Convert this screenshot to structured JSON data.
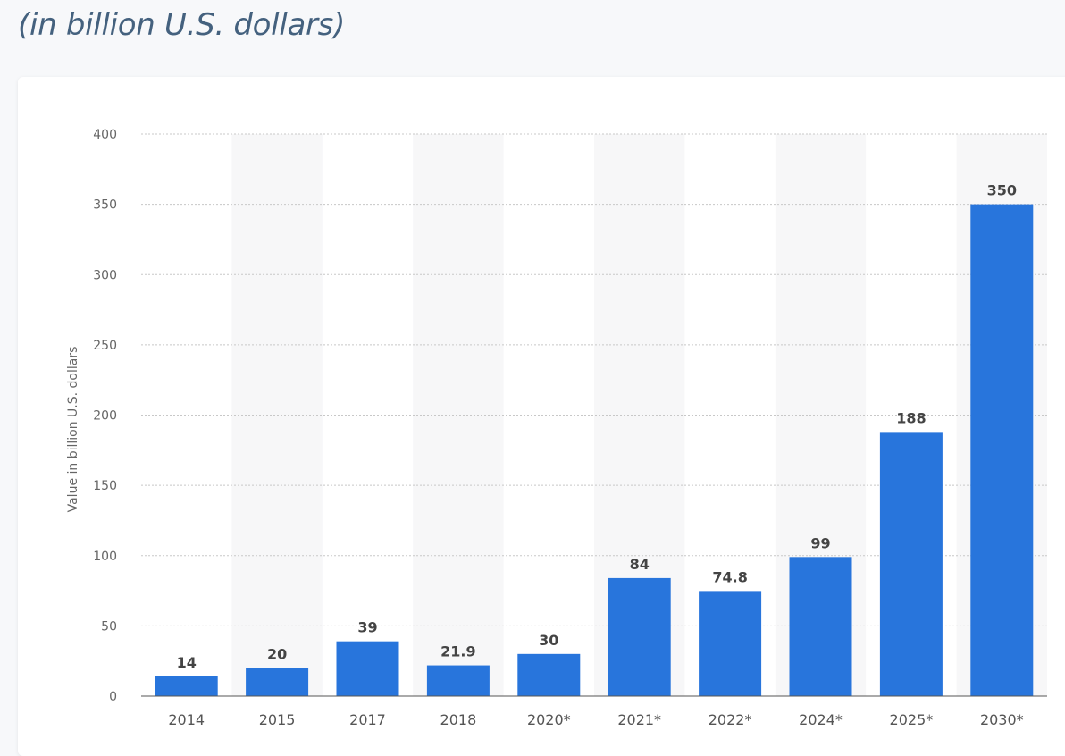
{
  "page": {
    "subtitle": "(in billion U.S. dollars)"
  },
  "chart_data": {
    "type": "bar",
    "title": "",
    "subtitle": "(in billion U.S. dollars)",
    "xlabel": "",
    "ylabel": "Value in billion U.S. dollars",
    "ylim": [
      0,
      400
    ],
    "yticks": [
      0,
      50,
      100,
      150,
      200,
      250,
      300,
      350,
      400
    ],
    "grid": true,
    "categories": [
      "2014",
      "2015",
      "2017",
      "2018",
      "2020*",
      "2021*",
      "2022*",
      "2024*",
      "2025*",
      "2030*"
    ],
    "values": [
      14,
      20,
      39,
      21.9,
      30,
      84,
      74.8,
      99,
      188,
      350
    ],
    "value_labels": [
      "14",
      "20",
      "39",
      "21.9",
      "30",
      "84",
      "74.8",
      "99",
      "188",
      "350"
    ],
    "bar_color": "#2875dc",
    "band_color": "#f7f7f8"
  }
}
